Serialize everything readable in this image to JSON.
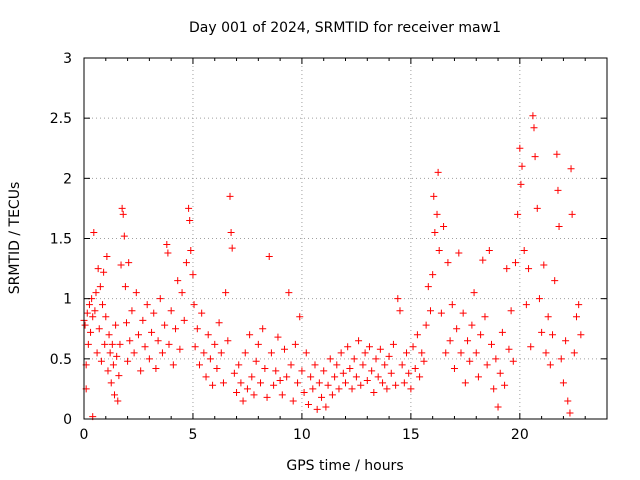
{
  "chart_data": {
    "type": "scatter",
    "title": "Day 001 of 2024, SRMTID for receiver maw1",
    "xlabel": "GPS time / hours",
    "ylabel": "SRMTID / TECUs",
    "xlim": [
      0,
      24
    ],
    "ylim": [
      0,
      3
    ],
    "xticks": [
      0,
      5,
      10,
      15,
      20
    ],
    "xtick_labels": [
      "0",
      "5",
      "10",
      "15",
      "20"
    ],
    "yticks": [
      0,
      0.5,
      1,
      1.5,
      2,
      2.5,
      3
    ],
    "ytick_labels": [
      "0",
      "0.5",
      "1",
      "1.5",
      "2",
      "2.5",
      "3"
    ],
    "grid": true,
    "marker": "+",
    "color": "#ff0000",
    "series": [
      {
        "name": "SRMTID",
        "points": [
          [
            0.0,
            0.82
          ],
          [
            0.05,
            0.78
          ],
          [
            0.1,
            0.25
          ],
          [
            0.1,
            0.45
          ],
          [
            0.15,
            0.88
          ],
          [
            0.2,
            0.62
          ],
          [
            0.25,
            0.95
          ],
          [
            0.3,
            0.72
          ],
          [
            0.35,
            1.0
          ],
          [
            0.4,
            0.85
          ],
          [
            0.4,
            0.02
          ],
          [
            0.45,
            1.55
          ],
          [
            0.5,
            0.9
          ],
          [
            0.55,
            1.05
          ],
          [
            0.6,
            0.55
          ],
          [
            0.65,
            1.25
          ],
          [
            0.7,
            0.75
          ],
          [
            0.75,
            1.1
          ],
          [
            0.8,
            0.48
          ],
          [
            0.85,
            0.95
          ],
          [
            0.9,
            1.22
          ],
          [
            0.95,
            0.62
          ],
          [
            1.0,
            0.85
          ],
          [
            1.05,
            1.35
          ],
          [
            1.1,
            0.4
          ],
          [
            1.15,
            0.7
          ],
          [
            1.2,
            0.55
          ],
          [
            1.25,
            0.3
          ],
          [
            1.3,
            0.62
          ],
          [
            1.35,
            0.45
          ],
          [
            1.4,
            0.2
          ],
          [
            1.45,
            0.78
          ],
          [
            1.5,
            0.52
          ],
          [
            1.55,
            0.15
          ],
          [
            1.6,
            0.36
          ],
          [
            1.65,
            0.62
          ],
          [
            1.7,
            1.28
          ],
          [
            1.75,
            1.75
          ],
          [
            1.8,
            1.7
          ],
          [
            1.85,
            1.52
          ],
          [
            1.9,
            1.1
          ],
          [
            1.95,
            0.8
          ],
          [
            2.0,
            0.48
          ],
          [
            2.05,
            1.3
          ],
          [
            2.1,
            0.65
          ],
          [
            2.2,
            0.9
          ],
          [
            2.3,
            0.55
          ],
          [
            2.4,
            1.05
          ],
          [
            2.5,
            0.7
          ],
          [
            2.6,
            0.4
          ],
          [
            2.7,
            0.82
          ],
          [
            2.8,
            0.6
          ],
          [
            2.9,
            0.95
          ],
          [
            3.0,
            0.5
          ],
          [
            3.1,
            0.72
          ],
          [
            3.2,
            0.88
          ],
          [
            3.3,
            0.42
          ],
          [
            3.4,
            0.65
          ],
          [
            3.5,
            1.0
          ],
          [
            3.6,
            0.55
          ],
          [
            3.7,
            0.78
          ],
          [
            3.8,
            1.45
          ],
          [
            3.85,
            1.38
          ],
          [
            3.9,
            0.62
          ],
          [
            4.0,
            0.9
          ],
          [
            4.1,
            0.45
          ],
          [
            4.2,
            0.75
          ],
          [
            4.3,
            1.15
          ],
          [
            4.4,
            0.58
          ],
          [
            4.5,
            1.05
          ],
          [
            4.6,
            0.82
          ],
          [
            4.7,
            1.3
          ],
          [
            4.8,
            1.75
          ],
          [
            4.85,
            1.65
          ],
          [
            4.9,
            1.4
          ],
          [
            5.0,
            1.2
          ],
          [
            5.05,
            0.95
          ],
          [
            5.1,
            0.6
          ],
          [
            5.2,
            0.75
          ],
          [
            5.3,
            0.45
          ],
          [
            5.4,
            0.88
          ],
          [
            5.5,
            0.55
          ],
          [
            5.6,
            0.35
          ],
          [
            5.7,
            0.7
          ],
          [
            5.8,
            0.5
          ],
          [
            5.9,
            0.28
          ],
          [
            6.0,
            0.62
          ],
          [
            6.1,
            0.42
          ],
          [
            6.2,
            0.8
          ],
          [
            6.3,
            0.55
          ],
          [
            6.4,
            0.3
          ],
          [
            6.5,
            1.05
          ],
          [
            6.6,
            0.65
          ],
          [
            6.7,
            1.85
          ],
          [
            6.75,
            1.55
          ],
          [
            6.8,
            1.42
          ],
          [
            6.9,
            0.38
          ],
          [
            7.0,
            0.22
          ],
          [
            7.1,
            0.45
          ],
          [
            7.2,
            0.3
          ],
          [
            7.3,
            0.15
          ],
          [
            7.4,
            0.55
          ],
          [
            7.5,
            0.25
          ],
          [
            7.6,
            0.7
          ],
          [
            7.7,
            0.35
          ],
          [
            7.8,
            0.2
          ],
          [
            7.9,
            0.48
          ],
          [
            8.0,
            0.62
          ],
          [
            8.1,
            0.3
          ],
          [
            8.2,
            0.75
          ],
          [
            8.3,
            0.42
          ],
          [
            8.4,
            0.18
          ],
          [
            8.5,
            1.35
          ],
          [
            8.6,
            0.55
          ],
          [
            8.7,
            0.28
          ],
          [
            8.8,
            0.4
          ],
          [
            8.9,
            0.68
          ],
          [
            9.0,
            0.32
          ],
          [
            9.1,
            0.2
          ],
          [
            9.2,
            0.58
          ],
          [
            9.3,
            0.35
          ],
          [
            9.4,
            1.05
          ],
          [
            9.5,
            0.45
          ],
          [
            9.6,
            0.15
          ],
          [
            9.7,
            0.62
          ],
          [
            9.8,
            0.3
          ],
          [
            9.9,
            0.85
          ],
          [
            10.0,
            0.4
          ],
          [
            10.1,
            0.22
          ],
          [
            10.2,
            0.55
          ],
          [
            10.3,
            0.12
          ],
          [
            10.4,
            0.35
          ],
          [
            10.5,
            0.25
          ],
          [
            10.6,
            0.45
          ],
          [
            10.7,
            0.08
          ],
          [
            10.8,
            0.3
          ],
          [
            10.9,
            0.18
          ],
          [
            11.0,
            0.4
          ],
          [
            11.1,
            0.1
          ],
          [
            11.2,
            0.28
          ],
          [
            11.3,
            0.5
          ],
          [
            11.4,
            0.2
          ],
          [
            11.5,
            0.35
          ],
          [
            11.6,
            0.45
          ],
          [
            11.7,
            0.25
          ],
          [
            11.8,
            0.55
          ],
          [
            11.9,
            0.38
          ],
          [
            12.0,
            0.3
          ],
          [
            12.1,
            0.6
          ],
          [
            12.2,
            0.42
          ],
          [
            12.3,
            0.25
          ],
          [
            12.4,
            0.5
          ],
          [
            12.5,
            0.35
          ],
          [
            12.6,
            0.65
          ],
          [
            12.7,
            0.28
          ],
          [
            12.8,
            0.45
          ],
          [
            12.9,
            0.55
          ],
          [
            13.0,
            0.32
          ],
          [
            13.1,
            0.6
          ],
          [
            13.2,
            0.4
          ],
          [
            13.3,
            0.22
          ],
          [
            13.4,
            0.5
          ],
          [
            13.5,
            0.35
          ],
          [
            13.6,
            0.58
          ],
          [
            13.7,
            0.3
          ],
          [
            13.8,
            0.45
          ],
          [
            13.9,
            0.25
          ],
          [
            14.0,
            0.52
          ],
          [
            14.1,
            0.38
          ],
          [
            14.2,
            0.62
          ],
          [
            14.3,
            0.28
          ],
          [
            14.4,
            1.0
          ],
          [
            14.5,
            0.9
          ],
          [
            14.6,
            0.45
          ],
          [
            14.7,
            0.3
          ],
          [
            14.8,
            0.55
          ],
          [
            14.9,
            0.38
          ],
          [
            15.0,
            0.25
          ],
          [
            15.1,
            0.6
          ],
          [
            15.2,
            0.42
          ],
          [
            15.3,
            0.7
          ],
          [
            15.4,
            0.35
          ],
          [
            15.5,
            0.55
          ],
          [
            15.6,
            0.48
          ],
          [
            15.7,
            0.78
          ],
          [
            15.8,
            1.1
          ],
          [
            15.9,
            0.9
          ],
          [
            16.0,
            1.2
          ],
          [
            16.05,
            1.85
          ],
          [
            16.1,
            1.55
          ],
          [
            16.2,
            1.7
          ],
          [
            16.25,
            2.05
          ],
          [
            16.3,
            1.4
          ],
          [
            16.4,
            0.88
          ],
          [
            16.5,
            1.6
          ],
          [
            16.6,
            0.55
          ],
          [
            16.7,
            1.3
          ],
          [
            16.8,
            0.65
          ],
          [
            16.9,
            0.95
          ],
          [
            17.0,
            0.42
          ],
          [
            17.1,
            0.75
          ],
          [
            17.2,
            1.38
          ],
          [
            17.3,
            0.55
          ],
          [
            17.4,
            0.88
          ],
          [
            17.5,
            0.3
          ],
          [
            17.6,
            0.65
          ],
          [
            17.7,
            0.48
          ],
          [
            17.8,
            0.78
          ],
          [
            17.9,
            1.05
          ],
          [
            18.0,
            0.55
          ],
          [
            18.1,
            0.35
          ],
          [
            18.2,
            0.7
          ],
          [
            18.3,
            1.32
          ],
          [
            18.4,
            0.85
          ],
          [
            18.5,
            0.45
          ],
          [
            18.6,
            1.4
          ],
          [
            18.7,
            0.62
          ],
          [
            18.8,
            0.25
          ],
          [
            18.9,
            0.5
          ],
          [
            19.0,
            0.1
          ],
          [
            19.1,
            0.38
          ],
          [
            19.2,
            0.72
          ],
          [
            19.3,
            0.28
          ],
          [
            19.4,
            1.25
          ],
          [
            19.5,
            0.58
          ],
          [
            19.6,
            0.9
          ],
          [
            19.7,
            0.48
          ],
          [
            19.8,
            1.3
          ],
          [
            19.9,
            1.7
          ],
          [
            20.0,
            2.25
          ],
          [
            20.05,
            1.95
          ],
          [
            20.1,
            2.1
          ],
          [
            20.2,
            1.4
          ],
          [
            20.3,
            0.95
          ],
          [
            20.4,
            1.25
          ],
          [
            20.5,
            0.6
          ],
          [
            20.6,
            2.52
          ],
          [
            20.65,
            2.42
          ],
          [
            20.7,
            2.18
          ],
          [
            20.8,
            1.75
          ],
          [
            20.9,
            1.0
          ],
          [
            21.0,
            0.72
          ],
          [
            21.1,
            1.28
          ],
          [
            21.2,
            0.55
          ],
          [
            21.3,
            0.85
          ],
          [
            21.4,
            0.45
          ],
          [
            21.5,
            0.7
          ],
          [
            21.6,
            1.15
          ],
          [
            21.7,
            2.2
          ],
          [
            21.75,
            1.9
          ],
          [
            21.8,
            1.6
          ],
          [
            21.9,
            0.5
          ],
          [
            22.0,
            0.3
          ],
          [
            22.1,
            0.65
          ],
          [
            22.2,
            0.15
          ],
          [
            22.3,
            0.05
          ],
          [
            22.35,
            2.08
          ],
          [
            22.4,
            1.7
          ],
          [
            22.5,
            0.55
          ],
          [
            22.6,
            0.85
          ],
          [
            22.7,
            0.95
          ],
          [
            22.8,
            0.7
          ]
        ]
      }
    ]
  }
}
